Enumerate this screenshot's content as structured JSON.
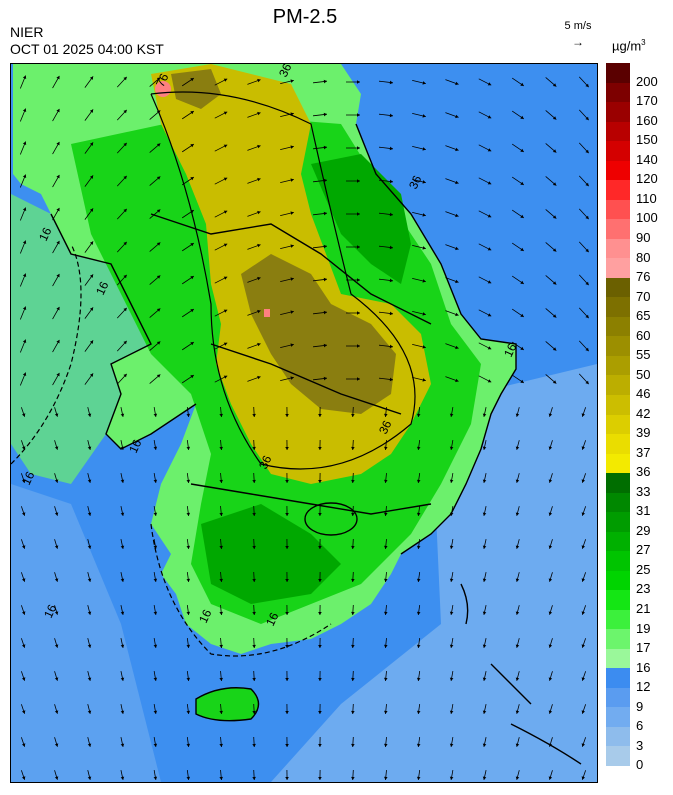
{
  "header": {
    "agency": "NIER",
    "timestamp": "OCT 01 2025 04:00 KST",
    "title": "PM-2.5",
    "wind_reference": "5 m/s",
    "unit_prefix": "µg/m",
    "unit_exponent": "3"
  },
  "contour_labels": [
    "76",
    "36",
    "36",
    "36",
    "36",
    "16",
    "16",
    "16",
    "16",
    "16",
    "16",
    "16",
    "16"
  ],
  "legend": {
    "ticks": [
      "200",
      "170",
      "160",
      "150",
      "140",
      "120",
      "110",
      "100",
      "90",
      "80",
      "76",
      "70",
      "65",
      "60",
      "55",
      "50",
      "46",
      "42",
      "39",
      "37",
      "36",
      "33",
      "31",
      "29",
      "27",
      "25",
      "23",
      "21",
      "19",
      "17",
      "16",
      "12",
      "9",
      "6",
      "3",
      "0"
    ],
    "colors": [
      "#5a0000",
      "#7d0000",
      "#9a0000",
      "#b80000",
      "#d40000",
      "#ee0000",
      "#ff2828",
      "#ff5050",
      "#ff7070",
      "#ff9090",
      "#ffa0a0",
      "#6b6000",
      "#7d7000",
      "#8c8000",
      "#9c8f00",
      "#ab9e00",
      "#bcae00",
      "#ccbe00",
      "#dcce00",
      "#eadd00",
      "#f3ea00",
      "#006e00",
      "#008800",
      "#009c00",
      "#00b000",
      "#00c400",
      "#00d400",
      "#14e614",
      "#3cf03c",
      "#6cf56c",
      "#9af89a",
      "#3c8cf0",
      "#5a9cf0",
      "#72acf0",
      "#8ebcec",
      "#a8cbea"
    ]
  },
  "map": {
    "ocean_color": "#3d8ff0",
    "ocean_far_color": "#72aef0",
    "land_colors": {
      "low": "#6cf06c",
      "mid": "#18d418",
      "high": "#00a800",
      "elevated": "#c9bd00",
      "peak": "#8a7e10",
      "hotspot": "#ff8080"
    }
  }
}
